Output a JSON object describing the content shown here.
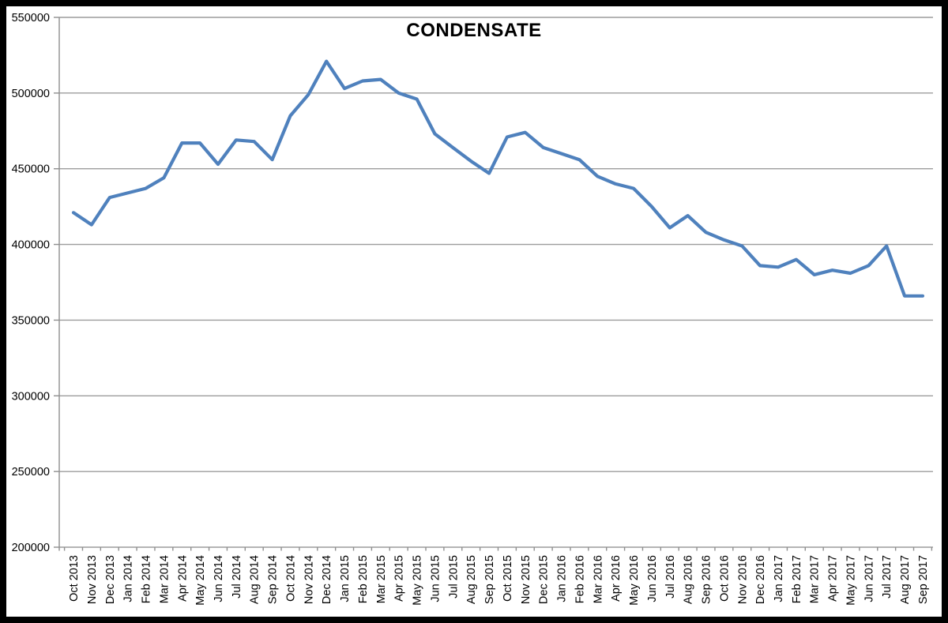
{
  "window": {
    "title": "CONDENSATE"
  },
  "chart_data": {
    "type": "line",
    "title": "CONDENSATE",
    "xlabel": "",
    "ylabel": "",
    "ylim": [
      200000,
      550000
    ],
    "yticks": [
      200000,
      250000,
      300000,
      350000,
      400000,
      450000,
      500000,
      550000
    ],
    "grid": "horizontal",
    "legend_position": "none",
    "categories": [
      "Oct 2013",
      "Nov 2013",
      "Dec 2013",
      "Jan 2014",
      "Feb 2014",
      "Mar 2014",
      "Apr 2014",
      "May 2014",
      "Jun 2014",
      "Jul 2014",
      "Aug 2014",
      "Sep 2014",
      "Oct 2014",
      "Nov 2014",
      "Dec 2014",
      "Jan 2015",
      "Feb 2015",
      "Mar 2015",
      "Apr 2015",
      "May 2015",
      "Jun 2015",
      "Jul 2015",
      "Aug 2015",
      "Sep 2015",
      "Oct 2015",
      "Nov 2015",
      "Dec 2015",
      "Jan 2016",
      "Feb 2016",
      "Mar 2016",
      "Apr 2016",
      "May 2016",
      "Jun 2016",
      "Jul 2016",
      "Aug 2016",
      "Sep 2016",
      "Oct 2016",
      "Nov 2016",
      "Dec 2016",
      "Jan 2017",
      "Feb 2017",
      "Mar 2017",
      "Apr 2017",
      "May 2017",
      "Jun 2017",
      "Jul 2017",
      "Aug 2017",
      "Sep 2017"
    ],
    "series": [
      {
        "name": "CONDENSATE",
        "color": "#4F81BD",
        "values": [
          421000,
          413000,
          431000,
          434000,
          437000,
          444000,
          467000,
          467000,
          453000,
          469000,
          468000,
          456000,
          485000,
          499000,
          521000,
          503000,
          508000,
          509000,
          500000,
          496000,
          473000,
          464000,
          455000,
          447000,
          471000,
          474000,
          464000,
          460000,
          456000,
          445000,
          440000,
          437000,
          425000,
          411000,
          419000,
          408000,
          403000,
          399000,
          386000,
          385000,
          390000,
          380000,
          383000,
          381000,
          386000,
          399000,
          366000,
          366000
        ]
      }
    ],
    "colors": {
      "line": "#4F81BD",
      "grid": "#9C9C9C",
      "axis": "#8F8F8F",
      "text": "#000000",
      "frame": "#000000",
      "background": "#FFFFFF"
    }
  }
}
